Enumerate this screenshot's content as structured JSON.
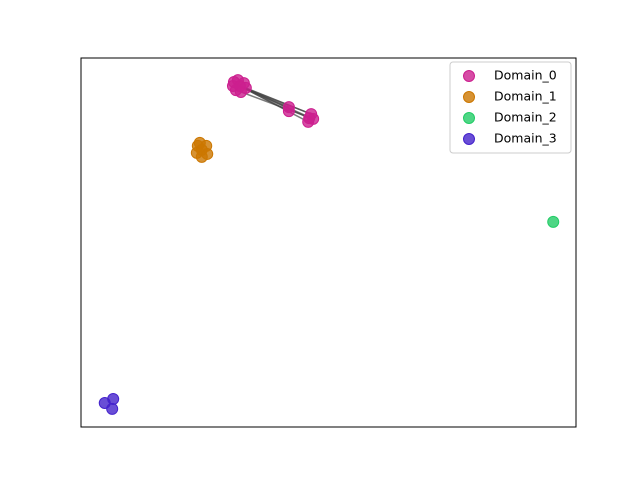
{
  "chart_data": {
    "type": "scatter",
    "xlim": [
      0,
      100
    ],
    "ylim": [
      0,
      100
    ],
    "legend": "upper right",
    "series": [
      {
        "name": "Domain_0",
        "color": "#cc1f8f",
        "x": [
          30.9,
          31.7,
          32.9,
          33.3,
          32.3,
          31.3,
          30.7,
          32.1,
          42.0,
          42.0,
          46.5,
          45.9,
          46.9,
          46.1
        ],
        "y": [
          93.5,
          94.0,
          93.2,
          91.9,
          90.8,
          91.3,
          92.4,
          92.4,
          86.7,
          85.6,
          84.8,
          82.7,
          83.5,
          83.7
        ]
      },
      {
        "name": "Domain_1",
        "color": "#cc7700",
        "x": [
          23.6,
          25.3,
          23.4,
          25.5,
          24.4,
          24.4,
          24.0
        ],
        "y": [
          76.2,
          76.2,
          74.3,
          74.0,
          73.2,
          75.1,
          77.0
        ]
      },
      {
        "name": "Domain_2",
        "color": "#22cc66",
        "x": [
          95.4
        ],
        "y": [
          55.6
        ]
      },
      {
        "name": "Domain_3",
        "color": "#4422cc",
        "x": [
          4.8,
          6.5,
          6.3
        ],
        "y": [
          6.5,
          7.6,
          4.9
        ]
      }
    ],
    "edges": [
      [
        7,
        8
      ],
      [
        7,
        9
      ],
      [
        7,
        10
      ],
      [
        7,
        11
      ],
      [
        7,
        12
      ],
      [
        7,
        13
      ],
      [
        3,
        10
      ],
      [
        4,
        12
      ]
    ]
  }
}
